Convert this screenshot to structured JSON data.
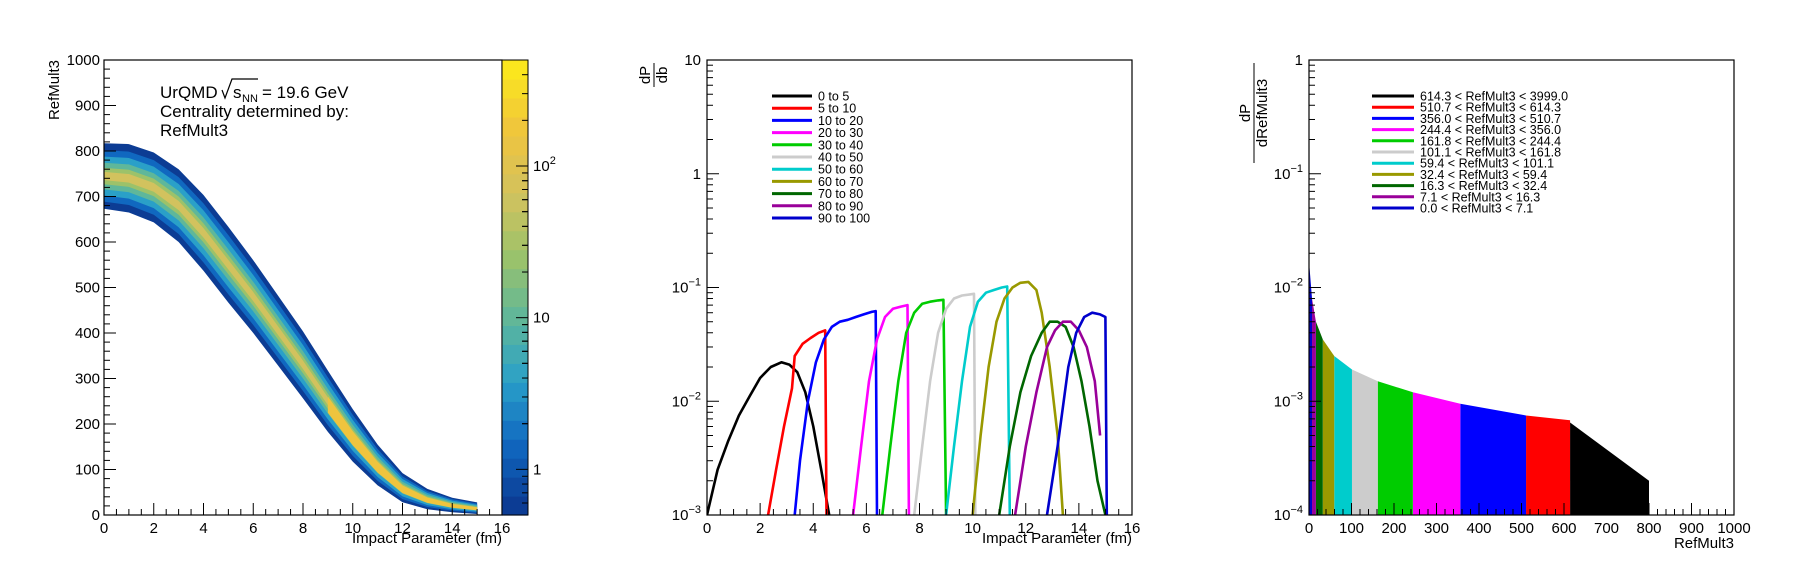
{
  "colors": {
    "frame": "#000000",
    "palette": [
      "#0c3c94",
      "#1068c0",
      "#2aa0c8",
      "#5fb79a",
      "#9cc26a",
      "#d2c25e",
      "#efc43e",
      "#fbe61e"
    ]
  },
  "chart_data": [
    {
      "type": "heatmap",
      "title": "",
      "xlabel": "Impact Parameter (fm)",
      "ylabel": "RefMult3",
      "xlim": [
        0,
        16
      ],
      "ylim": [
        0,
        1000
      ],
      "x_ticks": [
        "0",
        "2",
        "4",
        "6",
        "8",
        "10",
        "12",
        "14",
        "16"
      ],
      "y_ticks": [
        "0",
        "100",
        "200",
        "300",
        "400",
        "500",
        "600",
        "700",
        "800",
        "900",
        "1000"
      ],
      "annotation": {
        "line1_prefix": "UrQMD",
        "sqrt_s": "s",
        "sqrt_sub": "NN",
        "line1_suffix": "= 19.6 GeV",
        "line2": "Centrality determined by:",
        "line3": "RefMult3"
      },
      "colorbar": {
        "scale": "log",
        "range": [
          0.5,
          500
        ],
        "ticks": [
          {
            "value": 1,
            "label": "1"
          },
          {
            "value": 10,
            "label": "10"
          },
          {
            "value": 100,
            "base": "10",
            "exp": "2"
          }
        ]
      },
      "band": {
        "b": [
          0,
          1,
          2,
          3,
          4,
          5,
          6,
          7,
          8,
          9,
          10,
          11,
          12,
          13,
          14,
          15
        ],
        "refmult3_mean": [
          745,
          740,
          720,
          680,
          620,
          550,
          480,
          405,
          330,
          250,
          175,
          110,
          60,
          35,
          22,
          15
        ],
        "refmult3_width": [
          45,
          47,
          48,
          50,
          52,
          52,
          50,
          48,
          46,
          42,
          36,
          28,
          20,
          14,
          10,
          8
        ]
      }
    },
    {
      "type": "line",
      "title": "",
      "xlabel": "Impact Parameter (fm)",
      "ylabel_num": "dP",
      "ylabel_den": "db",
      "xlim": [
        0,
        16
      ],
      "ylim": [
        0.001,
        10
      ],
      "yscale": "log",
      "x_ticks": [
        "0",
        "2",
        "4",
        "6",
        "8",
        "10",
        "12",
        "14",
        "16"
      ],
      "y_ticks": [
        {
          "value": 0.001,
          "base": "10",
          "exp": "−3"
        },
        {
          "value": 0.01,
          "base": "10",
          "exp": "−2"
        },
        {
          "value": 0.1,
          "base": "10",
          "exp": "−1"
        },
        {
          "value": 1,
          "label": "1"
        },
        {
          "value": 10,
          "label": "10"
        }
      ],
      "legend_position": "top-left",
      "series": [
        {
          "name": "0 to 5",
          "color": "#000000",
          "x": [
            0.0,
            0.4,
            0.8,
            1.2,
            1.6,
            2.0,
            2.4,
            2.8,
            3.1,
            3.4,
            3.7,
            4.0,
            4.3,
            4.6
          ],
          "y": [
            0.001,
            0.0025,
            0.0045,
            0.0075,
            0.011,
            0.016,
            0.02,
            0.022,
            0.021,
            0.018,
            0.012,
            0.006,
            0.0025,
            0.001
          ]
        },
        {
          "name": "5 to 10",
          "color": "#ff0000",
          "x": [
            2.3,
            2.6,
            2.9,
            3.2,
            3.3,
            3.6,
            3.9,
            4.2,
            4.45,
            4.5
          ],
          "y": [
            0.001,
            0.0025,
            0.006,
            0.013,
            0.025,
            0.032,
            0.036,
            0.04,
            0.042,
            0.001
          ]
        },
        {
          "name": "10 to 20",
          "color": "#0000ff",
          "x": [
            3.3,
            3.5,
            3.8,
            4.1,
            4.4,
            4.7,
            5.0,
            5.3,
            5.6,
            5.9,
            6.2,
            6.35,
            6.4
          ],
          "y": [
            0.001,
            0.003,
            0.01,
            0.022,
            0.035,
            0.045,
            0.05,
            0.052,
            0.055,
            0.058,
            0.061,
            0.062,
            0.001
          ]
        },
        {
          "name": "20 to 30",
          "color": "#ff00ff",
          "x": [
            5.5,
            5.8,
            6.1,
            6.4,
            6.7,
            7.0,
            7.3,
            7.55,
            7.6
          ],
          "y": [
            0.001,
            0.004,
            0.015,
            0.035,
            0.055,
            0.065,
            0.068,
            0.07,
            0.001
          ]
        },
        {
          "name": "30 to 40",
          "color": "#00cc00",
          "x": [
            6.6,
            6.9,
            7.2,
            7.5,
            7.8,
            8.1,
            8.4,
            8.7,
            8.9,
            9.0
          ],
          "y": [
            0.001,
            0.004,
            0.015,
            0.04,
            0.06,
            0.072,
            0.075,
            0.077,
            0.078,
            0.001
          ]
        },
        {
          "name": "40 to 50",
          "color": "#cccccc",
          "x": [
            7.8,
            8.1,
            8.4,
            8.7,
            9.0,
            9.3,
            9.6,
            9.9,
            10.05,
            10.1
          ],
          "y": [
            0.001,
            0.004,
            0.015,
            0.04,
            0.065,
            0.08,
            0.085,
            0.087,
            0.088,
            0.001
          ]
        },
        {
          "name": "50 to 60",
          "color": "#00cccc",
          "x": [
            9.0,
            9.3,
            9.6,
            9.9,
            10.2,
            10.5,
            10.8,
            11.1,
            11.3,
            11.4
          ],
          "y": [
            0.001,
            0.004,
            0.015,
            0.045,
            0.075,
            0.09,
            0.095,
            0.1,
            0.102,
            0.001
          ]
        },
        {
          "name": "60 to 70",
          "color": "#999900",
          "x": [
            10.0,
            10.3,
            10.6,
            10.9,
            11.2,
            11.5,
            11.8,
            12.1,
            12.4,
            12.6,
            12.9,
            13.2,
            13.4
          ],
          "y": [
            0.001,
            0.005,
            0.02,
            0.05,
            0.08,
            0.1,
            0.11,
            0.112,
            0.095,
            0.06,
            0.02,
            0.005,
            0.001
          ]
        },
        {
          "name": "70 to 80",
          "color": "#006600",
          "x": [
            11.0,
            11.4,
            11.8,
            12.2,
            12.6,
            12.9,
            13.2,
            13.5,
            13.8,
            14.1,
            14.4,
            14.7,
            15.0
          ],
          "y": [
            0.001,
            0.004,
            0.012,
            0.025,
            0.04,
            0.05,
            0.05,
            0.045,
            0.03,
            0.015,
            0.006,
            0.002,
            0.001
          ]
        },
        {
          "name": "80 to 90",
          "color": "#990099",
          "x": [
            11.6,
            12.0,
            12.4,
            12.8,
            13.1,
            13.4,
            13.7,
            14.0,
            14.3,
            14.6,
            14.8
          ],
          "y": [
            0.001,
            0.004,
            0.012,
            0.03,
            0.042,
            0.05,
            0.05,
            0.042,
            0.03,
            0.015,
            0.005
          ]
        },
        {
          "name": "90 to 100",
          "color": "#0000cc",
          "x": [
            12.8,
            13.2,
            13.6,
            13.9,
            14.2,
            14.5,
            14.8,
            15.0,
            15.05
          ],
          "y": [
            0.001,
            0.004,
            0.02,
            0.04,
            0.055,
            0.06,
            0.058,
            0.055,
            0.001
          ]
        }
      ]
    },
    {
      "type": "bar",
      "title": "",
      "xlabel": "RefMult3",
      "ylabel_num": "dP",
      "ylabel_den": "dRefMult3",
      "xlim": [
        0,
        1000
      ],
      "ylim": [
        0.0001,
        1
      ],
      "yscale": "log",
      "x_ticks": [
        "0",
        "100",
        "200",
        "300",
        "400",
        "500",
        "600",
        "700",
        "800",
        "900",
        "1000"
      ],
      "y_ticks": [
        {
          "value": 0.0001,
          "base": "10",
          "exp": "−4"
        },
        {
          "value": 0.001,
          "base": "10",
          "exp": "−3"
        },
        {
          "value": 0.01,
          "base": "10",
          "exp": "−2"
        },
        {
          "value": 0.1,
          "base": "10",
          "exp": "−1"
        },
        {
          "value": 1,
          "label": "1"
        }
      ],
      "legend_position": "top-center",
      "bins": [
        {
          "name": "614.3 < RefMult3 < 3999.0",
          "color": "#000000",
          "x0": 614.3,
          "x1": 800,
          "y0": 0.00065,
          "y1": 0.0002
        },
        {
          "name": "510.7 < RefMult3 < 614.3",
          "color": "#ff0000",
          "x0": 510.7,
          "x1": 614.3,
          "y0": 0.00075,
          "y1": 0.00068
        },
        {
          "name": "356.0 < RefMult3 < 510.7",
          "color": "#0000ff",
          "x0": 356.0,
          "x1": 510.7,
          "y0": 0.00095,
          "y1": 0.00075
        },
        {
          "name": "244.4 < RefMult3 < 356.0",
          "color": "#ff00ff",
          "x0": 244.4,
          "x1": 356.0,
          "y0": 0.0012,
          "y1": 0.00095
        },
        {
          "name": "161.8 < RefMult3 < 244.4",
          "color": "#00cc00",
          "x0": 161.8,
          "x1": 244.4,
          "y0": 0.0015,
          "y1": 0.0012
        },
        {
          "name": "101.1 < RefMult3 < 161.8",
          "color": "#cccccc",
          "x0": 101.1,
          "x1": 161.8,
          "y0": 0.0019,
          "y1": 0.0015
        },
        {
          "name": "59.4 < RefMult3 < 101.1",
          "color": "#00cccc",
          "x0": 59.4,
          "x1": 101.1,
          "y0": 0.0025,
          "y1": 0.0019
        },
        {
          "name": "32.4 < RefMult3 < 59.4",
          "color": "#999900",
          "x0": 32.4,
          "x1": 59.4,
          "y0": 0.0035,
          "y1": 0.0025
        },
        {
          "name": "16.3 < RefMult3 < 32.4",
          "color": "#006600",
          "x0": 16.3,
          "x1": 32.4,
          "y0": 0.005,
          "y1": 0.0035
        },
        {
          "name": "7.1 < RefMult3 < 16.3",
          "color": "#990099",
          "x0": 7.1,
          "x1": 16.3,
          "y0": 0.008,
          "y1": 0.005
        },
        {
          "name": "0.0 < RefMult3 < 7.1",
          "color": "#0000cc",
          "x0": 0.0,
          "x1": 7.1,
          "y0": 0.017,
          "y1": 0.008
        }
      ]
    }
  ]
}
